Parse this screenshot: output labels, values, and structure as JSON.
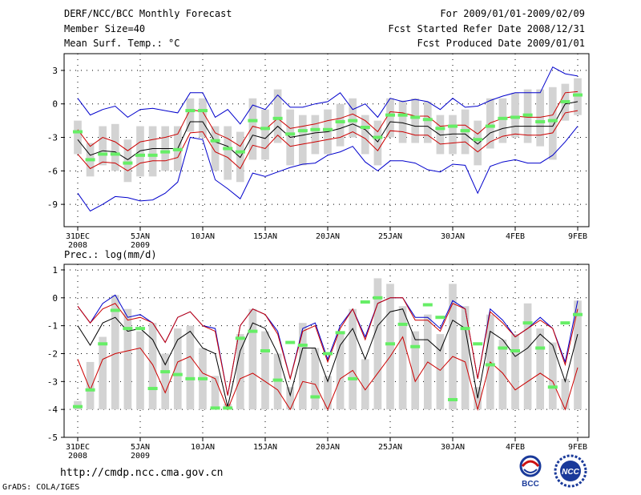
{
  "header": {
    "title": "DERF/NCC/BCC Monthly Forecast",
    "member_size": "Member Size=40",
    "variable": "Mean Surf. Temp.: °C",
    "period": "For 2009/01/01-2009/02/09",
    "started": "Fcst Started Refer Date 2008/12/31",
    "produced": "Fcst Produced Date 2009/01/01"
  },
  "footer": {
    "url": "http://cmdp.ncc.cma.gov.cn",
    "credit": "GrADS: COLA/IGES",
    "logo_bcc": "BCC",
    "logo_ncc": "NCC"
  },
  "colors": {
    "bar": "#d3d3d3",
    "mean": "#000000",
    "inner": "#cc0000",
    "outer": "#0000cc",
    "marker": "#66ee66"
  },
  "chart_data": [
    {
      "type": "line",
      "title": "Mean Surf. Temp.: °C",
      "ylabel": "°C",
      "ylim": [
        -11,
        4.5
      ],
      "yticks": [
        3,
        0,
        -3,
        -6,
        -9
      ],
      "x": [
        0,
        1,
        2,
        3,
        4,
        5,
        6,
        7,
        8,
        9,
        10,
        11,
        12,
        13,
        14,
        15,
        16,
        17,
        18,
        19,
        20,
        21,
        22,
        23,
        24,
        25,
        26,
        27,
        28,
        29,
        30,
        31,
        32,
        33,
        34,
        35,
        36,
        37,
        38,
        39,
        40
      ],
      "xticks": [
        {
          "i": 0,
          "label": "31DEC",
          "sub": "2008"
        },
        {
          "i": 5,
          "label": "5JAN",
          "sub": "2009"
        },
        {
          "i": 10,
          "label": "10JAN",
          "sub": ""
        },
        {
          "i": 15,
          "label": "15JAN",
          "sub": ""
        },
        {
          "i": 20,
          "label": "20JAN",
          "sub": ""
        },
        {
          "i": 25,
          "label": "25JAN",
          "sub": ""
        },
        {
          "i": 30,
          "label": "30JAN",
          "sub": ""
        },
        {
          "i": 35,
          "label": "4FEB",
          "sub": ""
        },
        {
          "i": 40,
          "label": "9FEB",
          "sub": ""
        }
      ],
      "series": [
        {
          "name": "mean",
          "values": [
            -3.2,
            -4.6,
            -4.2,
            -4.3,
            -5.0,
            -4.2,
            -4.0,
            -4.0,
            -4.0,
            -1.6,
            -1.6,
            -3.4,
            -3.8,
            -4.8,
            -2.8,
            -3.1,
            -2.0,
            -3.0,
            -2.8,
            -2.6,
            -2.5,
            -2.2,
            -1.8,
            -2.3,
            -3.4,
            -1.6,
            -1.7,
            -2.0,
            -2.0,
            -2.8,
            -2.7,
            -2.7,
            -3.6,
            -2.6,
            -2.2,
            -2.0,
            -2.0,
            -2.0,
            -2.0,
            0.0,
            0.2
          ]
        },
        {
          "name": "upper",
          "values": [
            -2.3,
            -3.8,
            -3.0,
            -3.4,
            -4.2,
            -3.4,
            -3.2,
            -3.0,
            -2.7,
            -0.5,
            -0.7,
            -2.6,
            -3.1,
            -3.8,
            -2.0,
            -2.3,
            -1.3,
            -2.2,
            -2.0,
            -1.8,
            -1.5,
            -1.3,
            -0.9,
            -1.5,
            -2.5,
            -0.7,
            -0.8,
            -1.1,
            -1.1,
            -2.0,
            -1.9,
            -1.9,
            -2.7,
            -1.7,
            -1.3,
            -1.1,
            -1.2,
            -1.2,
            -1.0,
            1.0,
            1.1
          ]
        },
        {
          "name": "lower",
          "values": [
            -4.5,
            -5.8,
            -5.2,
            -5.3,
            -6.0,
            -5.3,
            -5.1,
            -5.1,
            -4.8,
            -2.6,
            -2.5,
            -4.3,
            -4.8,
            -5.8,
            -3.7,
            -4.0,
            -2.8,
            -3.8,
            -3.6,
            -3.4,
            -3.2,
            -3.0,
            -2.5,
            -3.1,
            -4.2,
            -2.4,
            -2.5,
            -2.8,
            -2.8,
            -3.6,
            -3.5,
            -3.4,
            -4.3,
            -3.4,
            -2.9,
            -2.7,
            -2.8,
            -2.8,
            -2.6,
            -0.8,
            -0.6
          ]
        },
        {
          "name": "max",
          "values": [
            0.5,
            -1.0,
            -0.5,
            -0.2,
            -1.2,
            -0.5,
            -0.4,
            -0.6,
            -0.8,
            1.0,
            1.0,
            -1.2,
            -0.5,
            -1.8,
            -0.1,
            -0.5,
            0.8,
            -0.3,
            -0.3,
            0.0,
            0.2,
            1.0,
            -0.5,
            0.0,
            -1.2,
            0.5,
            0.2,
            0.4,
            0.2,
            -0.5,
            0.5,
            -0.3,
            -0.2,
            0.3,
            0.7,
            1.0,
            1.0,
            1.0,
            3.3,
            2.7,
            2.5
          ]
        },
        {
          "name": "min",
          "values": [
            -8.0,
            -9.6,
            -9.0,
            -8.3,
            -8.4,
            -8.7,
            -8.6,
            -8.0,
            -7.0,
            -3.0,
            -3.2,
            -6.8,
            -7.6,
            -8.5,
            -6.2,
            -6.5,
            -6.1,
            -5.7,
            -5.4,
            -5.3,
            -4.6,
            -4.3,
            -3.8,
            -5.2,
            -6.0,
            -5.1,
            -5.1,
            -5.3,
            -5.9,
            -6.1,
            -5.4,
            -5.5,
            -8.0,
            -5.6,
            -5.2,
            -5.0,
            -5.3,
            -5.3,
            -4.6,
            -3.4,
            -2.0
          ]
        },
        {
          "name": "bar_top",
          "values": [
            -1.5,
            -3.5,
            -2.0,
            -1.8,
            -3.2,
            -2.0,
            -2.0,
            -2.0,
            -2.0,
            0.5,
            0.5,
            -2.0,
            -2.0,
            -2.5,
            0.5,
            -0.5,
            1.3,
            -0.5,
            -1.0,
            -1.0,
            -0.5,
            0.0,
            0.5,
            -1.0,
            -1.5,
            0.5,
            0.3,
            0.5,
            0.2,
            -1.0,
            -1.0,
            -0.5,
            -1.5,
            0.5,
            0.5,
            1.0,
            1.3,
            1.3,
            1.5,
            1.8,
            2.3
          ]
        },
        {
          "name": "bar_bottom",
          "values": [
            -4.5,
            -6.5,
            -5.5,
            -6.0,
            -7.0,
            -6.5,
            -6.5,
            -6.0,
            -6.0,
            -2.5,
            -3.0,
            -6.0,
            -6.8,
            -7.0,
            -5.0,
            -5.0,
            -3.5,
            -5.5,
            -5.5,
            -4.5,
            -4.5,
            -3.8,
            -3.0,
            -4.5,
            -5.5,
            -3.0,
            -3.5,
            -3.5,
            -3.5,
            -4.5,
            -4.5,
            -4.5,
            -5.5,
            -4.0,
            -3.5,
            -3.0,
            -3.5,
            -3.8,
            -5.0,
            -1.5,
            -1.0
          ]
        },
        {
          "name": "observed",
          "values": [
            -2.5,
            -5.0,
            -4.5,
            -4.5,
            -5.3,
            -4.6,
            -4.6,
            -4.3,
            -4.1,
            -0.6,
            -0.6,
            -3.3,
            -4.0,
            -4.3,
            -1.5,
            -2.2,
            -1.3,
            -2.7,
            -2.4,
            -2.3,
            -2.3,
            -1.6,
            -1.5,
            -2.1,
            -3.0,
            -1.0,
            -1.0,
            -1.2,
            -1.4,
            -2.2,
            -2.0,
            -2.4,
            -3.2,
            -2.0,
            -1.3,
            -1.2,
            -1.0,
            -1.6,
            -1.5,
            0.2,
            0.8
          ]
        }
      ]
    },
    {
      "type": "line",
      "title": "Prec.: log(mm/d)",
      "ylabel": "log(mm/d)",
      "ylim": [
        -5,
        1.2
      ],
      "yticks": [
        1,
        0,
        -1,
        -2,
        -3,
        -4,
        -5
      ],
      "x": [
        0,
        1,
        2,
        3,
        4,
        5,
        6,
        7,
        8,
        9,
        10,
        11,
        12,
        13,
        14,
        15,
        16,
        17,
        18,
        19,
        20,
        21,
        22,
        23,
        24,
        25,
        26,
        27,
        28,
        29,
        30,
        31,
        32,
        33,
        34,
        35,
        36,
        37,
        38,
        39,
        40
      ],
      "xticks": [
        {
          "i": 0,
          "label": "31DEC",
          "sub": "2008"
        },
        {
          "i": 5,
          "label": "5JAN",
          "sub": "2009"
        },
        {
          "i": 10,
          "label": "10JAN",
          "sub": ""
        },
        {
          "i": 15,
          "label": "15JAN",
          "sub": ""
        },
        {
          "i": 20,
          "label": "20JAN",
          "sub": ""
        },
        {
          "i": 25,
          "label": "25JAN",
          "sub": ""
        },
        {
          "i": 30,
          "label": "30JAN",
          "sub": ""
        },
        {
          "i": 35,
          "label": "4FEB",
          "sub": ""
        },
        {
          "i": 40,
          "label": "9FEB",
          "sub": ""
        }
      ],
      "series": [
        {
          "name": "mean",
          "values": [
            -1.0,
            -1.7,
            -0.9,
            -0.7,
            -1.2,
            -1.1,
            -1.5,
            -2.4,
            -1.5,
            -1.2,
            -1.8,
            -2.0,
            -3.9,
            -1.9,
            -0.9,
            -1.1,
            -2.0,
            -3.5,
            -1.8,
            -1.8,
            -3.0,
            -1.7,
            -1.1,
            -2.2,
            -1.0,
            -0.5,
            -0.4,
            -1.5,
            -1.5,
            -1.9,
            -0.8,
            -1.1,
            -3.6,
            -1.2,
            -1.5,
            -2.1,
            -1.8,
            -1.3,
            -1.7,
            -3.0,
            -1.3
          ]
        },
        {
          "name": "upper",
          "values": [
            -0.3,
            -0.9,
            -0.4,
            -0.2,
            -0.8,
            -0.7,
            -0.9,
            -1.6,
            -0.7,
            -0.5,
            -1.0,
            -1.2,
            -3.5,
            -1.0,
            -0.4,
            -0.6,
            -1.3,
            -2.9,
            -1.2,
            -1.0,
            -2.3,
            -1.1,
            -0.4,
            -1.5,
            -0.2,
            0.0,
            0.0,
            -0.8,
            -0.8,
            -1.2,
            -0.2,
            -0.4,
            -2.9,
            -0.5,
            -0.9,
            -1.4,
            -1.1,
            -0.8,
            -1.1,
            -2.4,
            -0.4
          ]
        },
        {
          "name": "lower",
          "values": [
            -2.2,
            -3.3,
            -2.2,
            -2.0,
            -1.9,
            -1.8,
            -2.4,
            -3.4,
            -2.3,
            -2.1,
            -2.7,
            -2.9,
            -4.0,
            -2.9,
            -2.7,
            -3.0,
            -3.3,
            -4.0,
            -3.0,
            -3.1,
            -4.0,
            -2.9,
            -2.6,
            -3.3,
            -2.7,
            -2.1,
            -1.4,
            -3.0,
            -2.3,
            -2.6,
            -2.1,
            -2.3,
            -4.0,
            -2.3,
            -2.7,
            -3.3,
            -3.0,
            -2.7,
            -3.0,
            -4.0,
            -2.5
          ]
        },
        {
          "name": "max",
          "values": [
            -0.3,
            -0.9,
            -0.2,
            0.1,
            -0.7,
            -0.6,
            -0.9,
            -1.6,
            -0.7,
            -0.5,
            -1.0,
            -1.1,
            -3.5,
            -1.0,
            -0.4,
            -0.6,
            -1.2,
            -2.9,
            -1.1,
            -0.9,
            -2.2,
            -1.0,
            -0.4,
            -1.4,
            -0.2,
            0.0,
            0.0,
            -0.7,
            -0.7,
            -1.1,
            -0.1,
            -0.4,
            -2.9,
            -0.4,
            -0.8,
            -1.4,
            -1.1,
            -0.7,
            -1.1,
            -2.3,
            -0.1
          ]
        },
        {
          "name": "bar_top",
          "values": [
            -3.7,
            -2.3,
            -1.4,
            0.1,
            -0.4,
            -1.2,
            -0.9,
            -2.0,
            -1.1,
            -1.0,
            -1.8,
            -2.8,
            -3.8,
            -1.3,
            -0.4,
            -1.2,
            -2.0,
            -3.2,
            -0.9,
            -1.8,
            -2.8,
            -1.2,
            -0.4,
            -2.2,
            0.7,
            0.5,
            -0.3,
            -1.2,
            -0.6,
            -1.3,
            0.5,
            -0.3,
            -3.2,
            -0.6,
            -1.5,
            -1.3,
            -0.2,
            -1.1,
            -1.6,
            -2.9,
            -0.1
          ]
        },
        {
          "name": "observed",
          "values": [
            -3.9,
            -3.3,
            -1.65,
            -0.45,
            -1.1,
            -1.1,
            -3.25,
            -2.65,
            -2.75,
            -2.9,
            -2.9,
            -3.95,
            -3.95,
            -1.45,
            -1.2,
            -1.9,
            -2.95,
            -1.6,
            -1.7,
            -3.55,
            -2.0,
            -1.25,
            -2.9,
            -0.15,
            0.0,
            -1.65,
            -0.95,
            -1.75,
            -0.25,
            -0.7,
            -3.65,
            -1.1,
            -1.65,
            -2.4,
            -1.8,
            -1.9,
            -0.9,
            -1.8,
            -3.2,
            -0.9,
            -0.6
          ]
        }
      ]
    }
  ]
}
